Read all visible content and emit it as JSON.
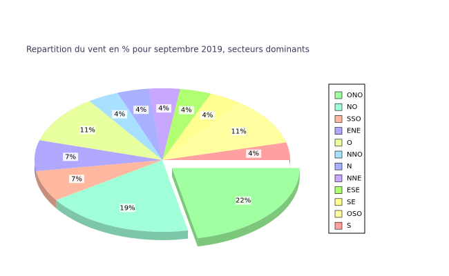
{
  "chart_data": {
    "type": "pie",
    "title": "Repartition du vent en % pour septembre 2019, secteurs dominants",
    "categories": [
      "ONO",
      "NO",
      "SSO",
      "ENE",
      "O",
      "NNO",
      "N",
      "NNE",
      "ESE",
      "SE",
      "OSO",
      "S"
    ],
    "values": [
      22,
      19,
      7,
      7,
      11,
      4,
      4,
      4,
      4,
      4,
      11,
      4
    ],
    "value_labels": [
      "22%",
      "19%",
      "7%",
      "7%",
      "11%",
      "4%",
      "4%",
      "4%",
      "4%",
      "4%",
      "11%",
      "4%"
    ],
    "colors": [
      "#a0ffa0",
      "#a0ffd8",
      "#ffb8a0",
      "#b0a8ff",
      "#e8ffa0",
      "#a8e0ff",
      "#a8b0ff",
      "#c8a8ff",
      "#b0ff70",
      "#ffff90",
      "#ffffa0",
      "#ffa0a0"
    ],
    "explode": "ONO",
    "legend": "right"
  }
}
